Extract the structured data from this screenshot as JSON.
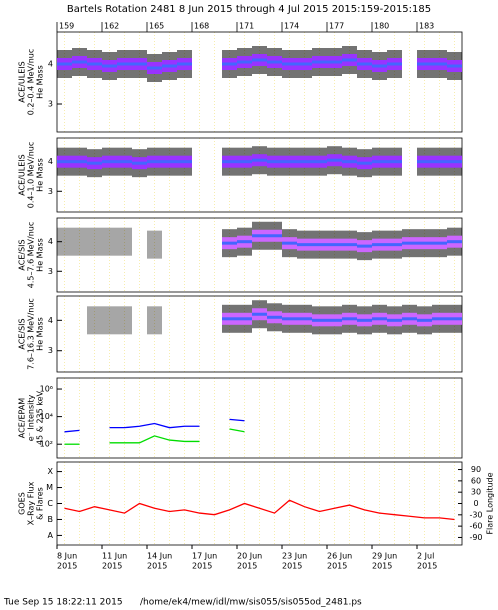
{
  "title": "Bartels Rotation 2481    8 Jun 2015 through 4 Jul 2015    2015:159-2015:185",
  "footer": {
    "date": "Tue Sep 15 18:22:11 2015",
    "path": "/home/ek4/mew/idl/mw/sis055/sis055od_2481.ps"
  },
  "xaxis": {
    "xlim": [
      0,
      27
    ],
    "year": "2015",
    "xticks": [
      {
        "value": 0,
        "label": "8 Jun"
      },
      {
        "value": 3,
        "label": "11 Jun"
      },
      {
        "value": 6,
        "label": "14 Jun"
      },
      {
        "value": 9,
        "label": "17 Jun"
      },
      {
        "value": 12,
        "label": "20 Jun"
      },
      {
        "value": 15,
        "label": "23 Jun"
      },
      {
        "value": 18,
        "label": "26 Jun"
      },
      {
        "value": 21,
        "label": "29 Jun"
      },
      {
        "value": 24,
        "label": "2 Jul"
      }
    ],
    "x2lim": [
      159,
      186
    ],
    "x2ticks": [
      159,
      162,
      165,
      168,
      171,
      174,
      177,
      180,
      183
    ],
    "x": [
      0.5,
      1.5,
      2.5,
      3.5,
      4.5,
      5.5,
      6.5,
      7.5,
      8.5,
      9.5,
      10.5,
      11.5,
      12.5,
      13.5,
      14.5,
      15.5,
      16.5,
      17.5,
      18.5,
      19.5,
      20.5,
      21.5,
      22.5,
      23.5,
      24.5,
      25.5,
      26.5
    ],
    "grid": true
  },
  "chart_data": [
    {
      "type": "scatter",
      "ylabel": [
        "ACE/ULEIS",
        "0.2–0.4 MeV/nuc",
        "He Mass"
      ],
      "ylim": [
        2.3,
        4.8
      ],
      "yticks": [
        3,
        4
      ],
      "series": [
        {
          "color": "#9933ff",
          "values": [
            4.0,
            4.05,
            4.0,
            3.95,
            4.0,
            4.0,
            3.9,
            3.95,
            4.0,
            null,
            null,
            4.0,
            4.05,
            4.1,
            4.05,
            4.0,
            4.0,
            4.05,
            4.05,
            4.1,
            4.0,
            3.95,
            4.0,
            null,
            4.0,
            4.0,
            3.95
          ]
        }
      ]
    },
    {
      "type": "scatter",
      "ylabel": [
        "ACE/ULEIS",
        "0.4–1.0 MeV/nuc",
        "He Mass"
      ],
      "ylim": [
        2.3,
        4.8
      ],
      "yticks": [
        3,
        4
      ],
      "series": [
        {
          "color": "#9933ff",
          "values": [
            4.0,
            4.0,
            3.95,
            4.0,
            4.0,
            3.95,
            4.0,
            4.0,
            4.0,
            null,
            null,
            4.0,
            4.0,
            4.05,
            4.0,
            4.0,
            4.0,
            4.0,
            4.05,
            4.0,
            3.95,
            4.0,
            4.0,
            null,
            4.0,
            4.0,
            4.0
          ]
        }
      ]
    },
    {
      "type": "scatter",
      "ylabel": [
        "ACE/SIS",
        "4.5–7.6 MeV/nuc",
        "He Mass"
      ],
      "ylim": [
        2.3,
        4.8
      ],
      "yticks": [
        3,
        4
      ],
      "series": [
        {
          "color": "#000000",
          "values": [
            4.0,
            4.0,
            4.0,
            4.0,
            4.0,
            null,
            3.9,
            null,
            null,
            null,
            null,
            null,
            null,
            null,
            null,
            null,
            null,
            null,
            null,
            null,
            null,
            null,
            null,
            null,
            null,
            null,
            null
          ]
        },
        {
          "color": "#cc66ff",
          "values": [
            null,
            null,
            null,
            null,
            null,
            null,
            null,
            null,
            null,
            null,
            null,
            3.95,
            4.0,
            4.2,
            4.2,
            3.95,
            3.9,
            3.9,
            3.9,
            3.9,
            3.85,
            3.9,
            3.9,
            3.95,
            3.95,
            3.95,
            4.0
          ]
        }
      ]
    },
    {
      "type": "scatter",
      "ylabel": [
        "ACE/SIS",
        "7.6–16.3 MeV/nuc",
        "He Mass"
      ],
      "ylim": [
        2.3,
        4.8
      ],
      "yticks": [
        3,
        4
      ],
      "series": [
        {
          "color": "#000000",
          "values": [
            null,
            null,
            4.0,
            4.0,
            4.0,
            null,
            4.0,
            null,
            null,
            null,
            null,
            null,
            null,
            null,
            null,
            null,
            null,
            null,
            null,
            null,
            null,
            null,
            null,
            null,
            null,
            null,
            null
          ]
        },
        {
          "color": "#cc66ff",
          "values": [
            null,
            null,
            null,
            null,
            null,
            null,
            null,
            null,
            null,
            null,
            null,
            4.05,
            4.05,
            4.2,
            4.1,
            4.05,
            4.05,
            4.0,
            4.0,
            4.05,
            4.0,
            4.05,
            4.0,
            4.05,
            4.0,
            4.05,
            4.05
          ]
        }
      ]
    },
    {
      "type": "line",
      "ylabel": [
        "ACE/EPAM",
        "e⁻ Intensity",
        "45 & 235 keV"
      ],
      "ylim": [
        1,
        6.8
      ],
      "yticks": [
        {
          "value": 2,
          "label": "10²"
        },
        {
          "value": 4,
          "label": "10⁴"
        },
        {
          "value": 6,
          "label": "10⁶"
        }
      ],
      "series": [
        {
          "color": "#0000ff",
          "values": [
            2.9,
            3.0,
            null,
            3.2,
            3.2,
            3.3,
            3.5,
            3.2,
            3.3,
            3.3,
            null,
            3.8,
            3.7,
            null,
            null,
            null,
            null,
            null,
            null,
            null,
            null,
            null,
            null,
            null,
            null,
            null,
            null
          ]
        },
        {
          "color": "#00dd00",
          "values": [
            2.0,
            2.0,
            null,
            2.1,
            2.1,
            2.1,
            2.6,
            2.3,
            2.2,
            2.2,
            null,
            3.1,
            2.9,
            null,
            null,
            null,
            null,
            null,
            null,
            null,
            null,
            null,
            null,
            null,
            null,
            null,
            null
          ]
        }
      ]
    },
    {
      "type": "line",
      "ylabel": [
        "GOES",
        "X–Ray Flux",
        "& Flares"
      ],
      "y2label": "Flare Longitude",
      "ylim": [
        -8.6,
        -3.4
      ],
      "yticks": [
        {
          "value": -8,
          "label": "A"
        },
        {
          "value": -7,
          "label": "B"
        },
        {
          "value": -6,
          "label": "C"
        },
        {
          "value": -5,
          "label": "M"
        },
        {
          "value": -4,
          "label": "X"
        }
      ],
      "y2lim": [
        -110,
        110
      ],
      "y2ticks": [
        90,
        60,
        30,
        0,
        -30,
        -60,
        -90
      ],
      "series": [
        {
          "color": "#ff0000",
          "values": [
            -6.3,
            -6.5,
            -6.2,
            -6.4,
            -6.6,
            -6.0,
            -6.3,
            -6.5,
            -6.4,
            -6.6,
            -6.7,
            -6.4,
            -6.0,
            -6.3,
            -6.6,
            -5.8,
            -6.2,
            -6.5,
            -6.3,
            -6.1,
            -6.4,
            -6.6,
            -6.7,
            -6.8,
            -6.9,
            -6.9,
            -7.0
          ]
        }
      ]
    }
  ]
}
